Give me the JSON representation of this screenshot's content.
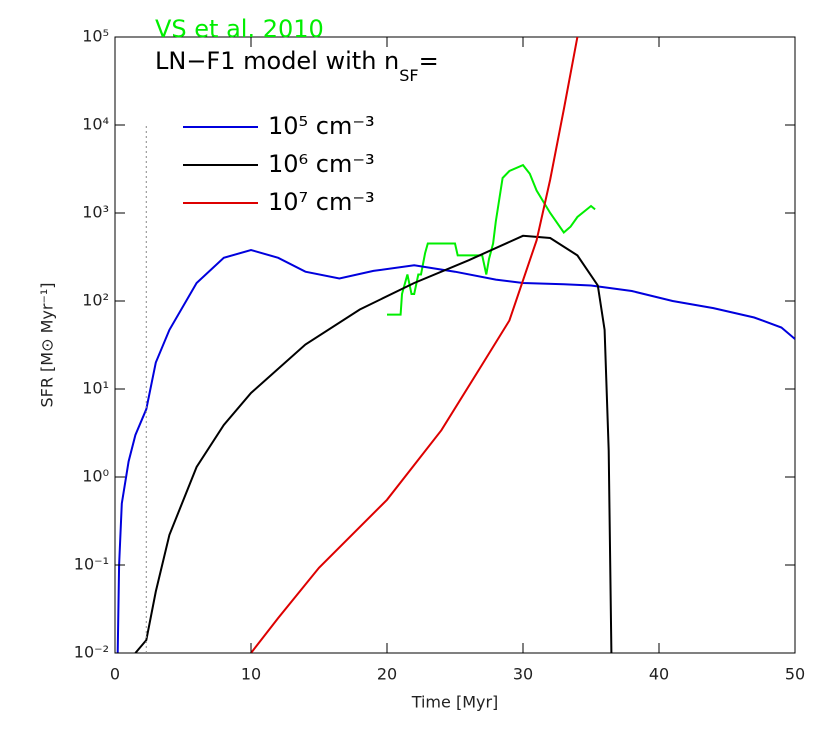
{
  "chart_data": {
    "type": "line",
    "x_label": "Time [Myr]",
    "y_label": "SFR [M⊙ Myr⁻¹]",
    "log_y": true,
    "xlim": [
      0,
      50
    ],
    "ylim": [
      0.01,
      100000
    ],
    "xticks": [
      0,
      10,
      20,
      30,
      40,
      50
    ],
    "yticks": [
      {
        "value": 0.01,
        "label": "10⁻²"
      },
      {
        "value": 0.1,
        "label": "10⁻¹"
      },
      {
        "value": 1,
        "label": "10⁰"
      },
      {
        "value": 10,
        "label": "10¹"
      },
      {
        "value": 100,
        "label": "10²"
      },
      {
        "value": 1000,
        "label": "10³"
      },
      {
        "value": 10000,
        "label": "10⁴"
      },
      {
        "value": 100000,
        "label": "10⁵"
      }
    ],
    "legend_title": {
      "text": "LN−F1 model with n",
      "subscript": "SF",
      "suffix": "="
    },
    "reference_line_x": 2.3,
    "series": [
      {
        "name": "VS et al. 2010",
        "color": "#00ee00",
        "x": [
          20,
          21,
          21.1,
          21.5,
          21.8,
          22,
          22.3,
          22.5,
          22.8,
          23,
          25,
          25.2,
          27,
          27.3,
          27.5,
          27.8,
          28,
          28.5,
          29,
          30,
          30.5,
          31,
          32,
          33,
          33.5,
          34,
          35,
          35.3
        ],
        "values": [
          70,
          70,
          120,
          200,
          120,
          120,
          200,
          200,
          350,
          450,
          450,
          330,
          330,
          200,
          300,
          450,
          800,
          2500,
          3000,
          3500,
          2800,
          1800,
          1000,
          600,
          700,
          900,
          1200,
          1100
        ]
      },
      {
        "name": "10⁵ cm⁻³",
        "color": "#0000dd",
        "x": [
          0.2,
          0.3,
          0.5,
          1,
          1.5,
          2.3,
          3,
          4,
          6,
          8,
          10,
          12,
          14,
          16.5,
          19,
          22,
          25,
          28,
          30,
          33,
          35,
          38,
          41,
          44,
          47,
          49,
          50
        ],
        "values": [
          0.01,
          0.1,
          0.5,
          1.5,
          3,
          5.9,
          20,
          47,
          160,
          310,
          380,
          310,
          215,
          180,
          220,
          255,
          215,
          175,
          160,
          155,
          150,
          130,
          100,
          83,
          65,
          50,
          37
        ]
      },
      {
        "name": "10⁶ cm⁻³",
        "color": "#000000",
        "x": [
          1.5,
          2.3,
          3,
          4,
          6,
          8,
          10,
          14,
          18,
          22,
          26,
          30,
          32,
          34,
          35.5,
          36,
          36.3,
          36.5
        ],
        "values": [
          0.01,
          0.014,
          0.05,
          0.22,
          1.3,
          3.9,
          9,
          32,
          80,
          160,
          290,
          550,
          520,
          330,
          150,
          47,
          2,
          0.01
        ]
      },
      {
        "name": "10⁷ cm⁻³",
        "color": "#dd0000",
        "x": [
          10,
          12,
          15,
          20,
          24,
          27,
          29,
          31,
          32,
          33,
          34
        ],
        "values": [
          0.01,
          0.025,
          0.093,
          0.55,
          3.4,
          19,
          60,
          490,
          2400,
          15000,
          100000
        ]
      }
    ]
  }
}
